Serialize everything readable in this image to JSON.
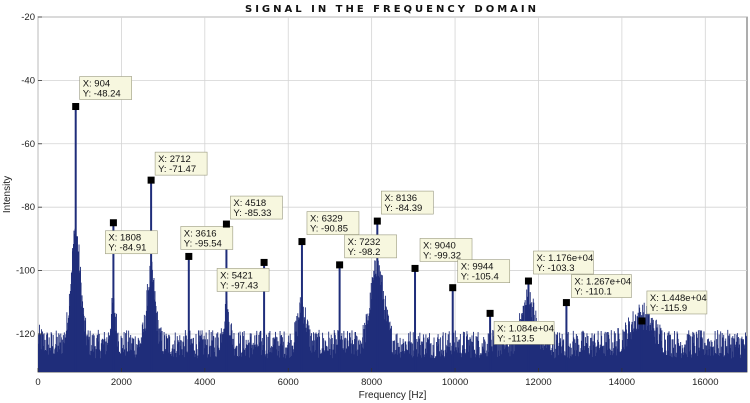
{
  "chart_data": {
    "type": "line",
    "title": "SIGNAL IN THE FREQUENCY DOMAIN",
    "xlabel": "Frequency [Hz]",
    "ylabel": "Intensity",
    "xlim": [
      0,
      17000
    ],
    "ylim": [
      -132,
      -20
    ],
    "grid": true,
    "x_ticks": [
      0,
      2000,
      4000,
      6000,
      8000,
      10000,
      12000,
      14000,
      16000
    ],
    "y_ticks": [
      -20,
      -40,
      -60,
      -80,
      -100,
      -120
    ],
    "series_color": "#1f2d7a",
    "noise_floor": -125,
    "spectrum_peaks": [
      {
        "x": 904,
        "y": -48.24
      },
      {
        "x": 1808,
        "y": -84.91
      },
      {
        "x": 2712,
        "y": -71.47
      },
      {
        "x": 3616,
        "y": -95.54
      },
      {
        "x": 4518,
        "y": -85.33
      },
      {
        "x": 5421,
        "y": -97.43
      },
      {
        "x": 6329,
        "y": -90.85
      },
      {
        "x": 7232,
        "y": -98.2
      },
      {
        "x": 8136,
        "y": -84.39
      },
      {
        "x": 9040,
        "y": -99.32
      },
      {
        "x": 9944,
        "y": -105.4
      },
      {
        "x": 10840,
        "y": -113.5
      },
      {
        "x": 11760,
        "y": -103.3
      },
      {
        "x": 12670,
        "y": -110.1
      },
      {
        "x": 14480,
        "y": -115.9
      }
    ],
    "annotations": [
      {
        "x": 904,
        "y": -48.24,
        "x_label": "X: 904",
        "y_label": "Y: -48.24"
      },
      {
        "x": 1808,
        "y": -84.91,
        "x_label": "X: 1808",
        "y_label": "Y: -84.91"
      },
      {
        "x": 2712,
        "y": -71.47,
        "x_label": "X: 2712",
        "y_label": "Y: -71.47"
      },
      {
        "x": 3616,
        "y": -95.54,
        "x_label": "X: 3616",
        "y_label": "Y: -95.54"
      },
      {
        "x": 4518,
        "y": -85.33,
        "x_label": "X: 4518",
        "y_label": "Y: -85.33"
      },
      {
        "x": 5421,
        "y": -97.43,
        "x_label": "X: 5421",
        "y_label": "Y: -97.43"
      },
      {
        "x": 6329,
        "y": -90.85,
        "x_label": "X: 6329",
        "y_label": "Y: -90.85"
      },
      {
        "x": 7232,
        "y": -98.2,
        "x_label": "X: 7232",
        "y_label": "Y: -98.2"
      },
      {
        "x": 8136,
        "y": -84.39,
        "x_label": "X: 8136",
        "y_label": "Y: -84.39"
      },
      {
        "x": 9040,
        "y": -99.32,
        "x_label": "X: 9040",
        "y_label": "Y: -99.32"
      },
      {
        "x": 9944,
        "y": -105.4,
        "x_label": "X: 9944",
        "y_label": "Y: -105.4"
      },
      {
        "x": 10840,
        "y": -113.5,
        "x_label": "X: 1.084e+04",
        "y_label": "Y: -113.5"
      },
      {
        "x": 11760,
        "y": -103.3,
        "x_label": "X: 1.176e+04",
        "y_label": "Y: -103.3"
      },
      {
        "x": 12670,
        "y": -110.1,
        "x_label": "X: 1.267e+04",
        "y_label": "Y: -110.1"
      },
      {
        "x": 14480,
        "y": -115.9,
        "x_label": "X: 1.448e+04",
        "y_label": "Y: -115.9"
      }
    ]
  }
}
